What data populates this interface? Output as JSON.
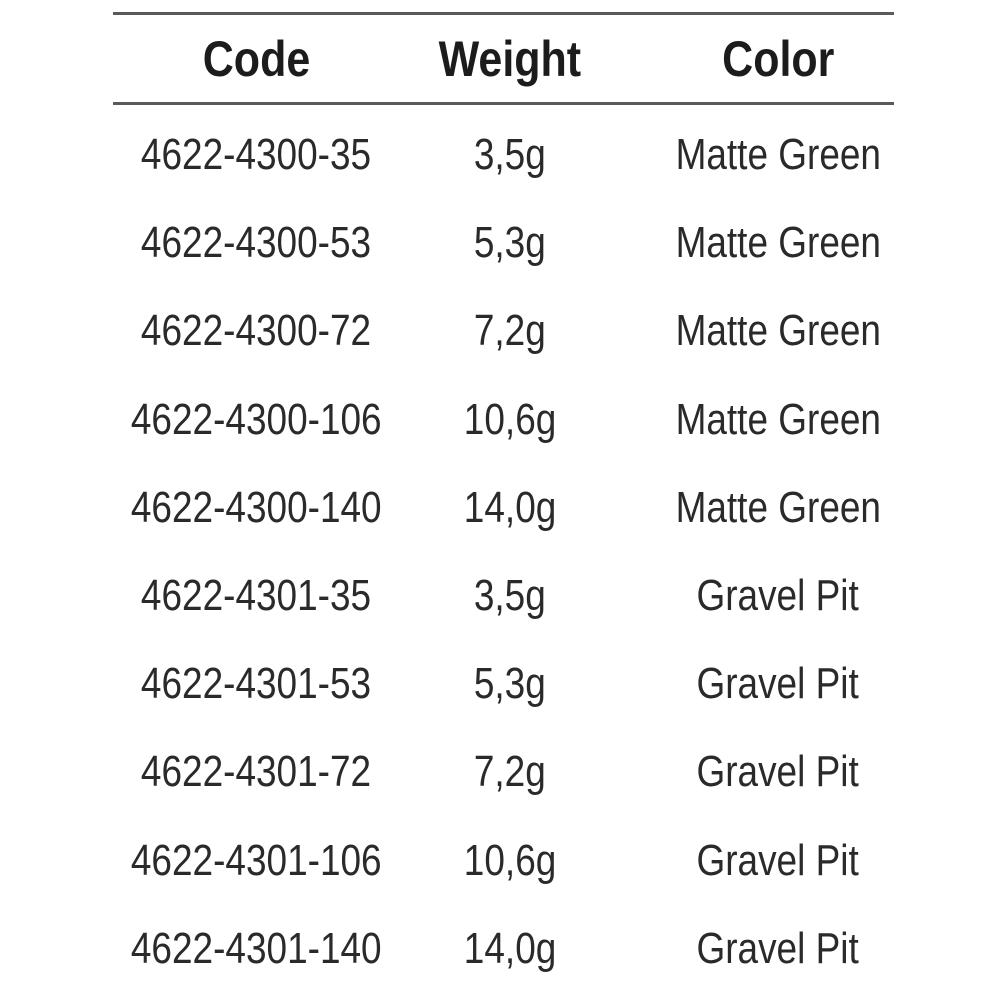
{
  "table": {
    "headers": [
      "Code",
      "Weight",
      "Color"
    ],
    "rows": [
      [
        "4622-4300-35",
        "3,5g",
        "Matte Green"
      ],
      [
        "4622-4300-53",
        "5,3g",
        "Matte Green"
      ],
      [
        "4622-4300-72",
        "7,2g",
        "Matte Green"
      ],
      [
        "4622-4300-106",
        "10,6g",
        "Matte Green"
      ],
      [
        "4622-4300-140",
        "14,0g",
        "Matte Green"
      ],
      [
        "4622-4301-35",
        "3,5g",
        "Gravel Pit"
      ],
      [
        "4622-4301-53",
        "5,3g",
        "Gravel Pit"
      ],
      [
        "4622-4301-72",
        "7,2g",
        "Gravel Pit"
      ],
      [
        "4622-4301-106",
        "10,6g",
        "Gravel Pit"
      ],
      [
        "4622-4301-140",
        "14,0g",
        "Gravel Pit"
      ]
    ]
  }
}
